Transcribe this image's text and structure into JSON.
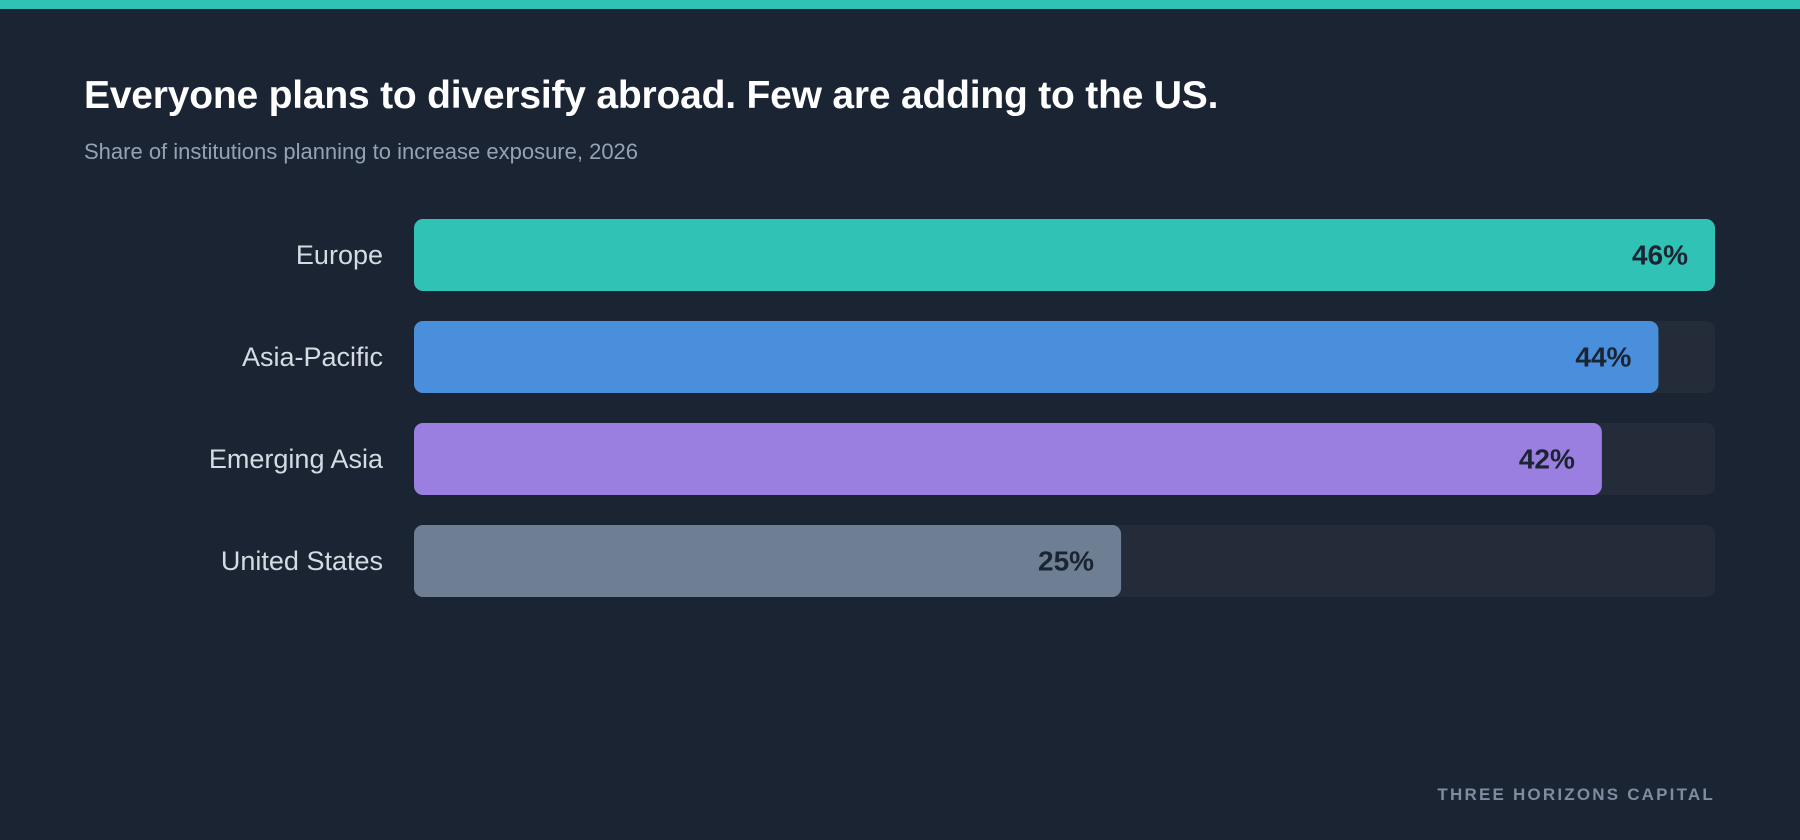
{
  "header": {
    "title": "Everyone plans to diversify abroad. Few are adding to the US.",
    "subtitle": "Share of institutions planning to increase exposure, 2026"
  },
  "footer": {
    "brand": "THREE HORIZONS CAPITAL"
  },
  "colors": {
    "background": "#1b2433",
    "accent": "#2fc2b5",
    "track": "#242c3a",
    "value_label": "#1b2433",
    "category_label": "#d5dbe3"
  },
  "chart_data": {
    "type": "bar",
    "orientation": "horizontal",
    "categories": [
      "Europe",
      "Asia-Pacific",
      "Emerging Asia",
      "United States"
    ],
    "values": [
      46,
      44,
      42,
      25
    ],
    "value_labels": [
      "46%",
      "44%",
      "42%",
      "25%"
    ],
    "bar_colors": [
      "#2fc2b5",
      "#4a8fdc",
      "#9b7fe0",
      "#6f7f93"
    ],
    "value_scale_max": 46,
    "unit": "%",
    "grid": false,
    "legend": "none"
  }
}
